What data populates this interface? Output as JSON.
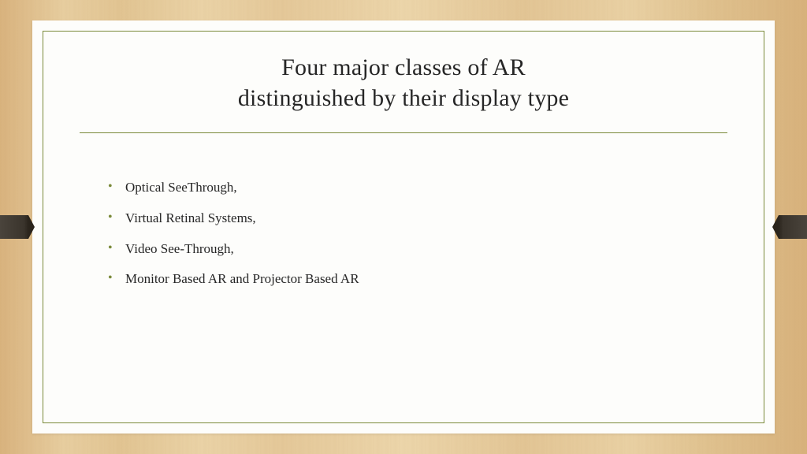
{
  "slide": {
    "title_line1": "Four major classes of  AR",
    "title_line2": "distinguished by their display type",
    "bullets": [
      "Optical SeeThrough,",
      "Virtual Retinal Systems,",
      "Video See-Through,",
      "Monitor Based AR and Projector Based AR"
    ]
  },
  "style": {
    "accent_color": "#7a8a3a",
    "title_color": "#262626",
    "body_color": "#262626",
    "bullet_color": "#7a8a3a",
    "card_bg": "#fdfdfb",
    "title_fontsize": 30,
    "body_fontsize": 17
  }
}
